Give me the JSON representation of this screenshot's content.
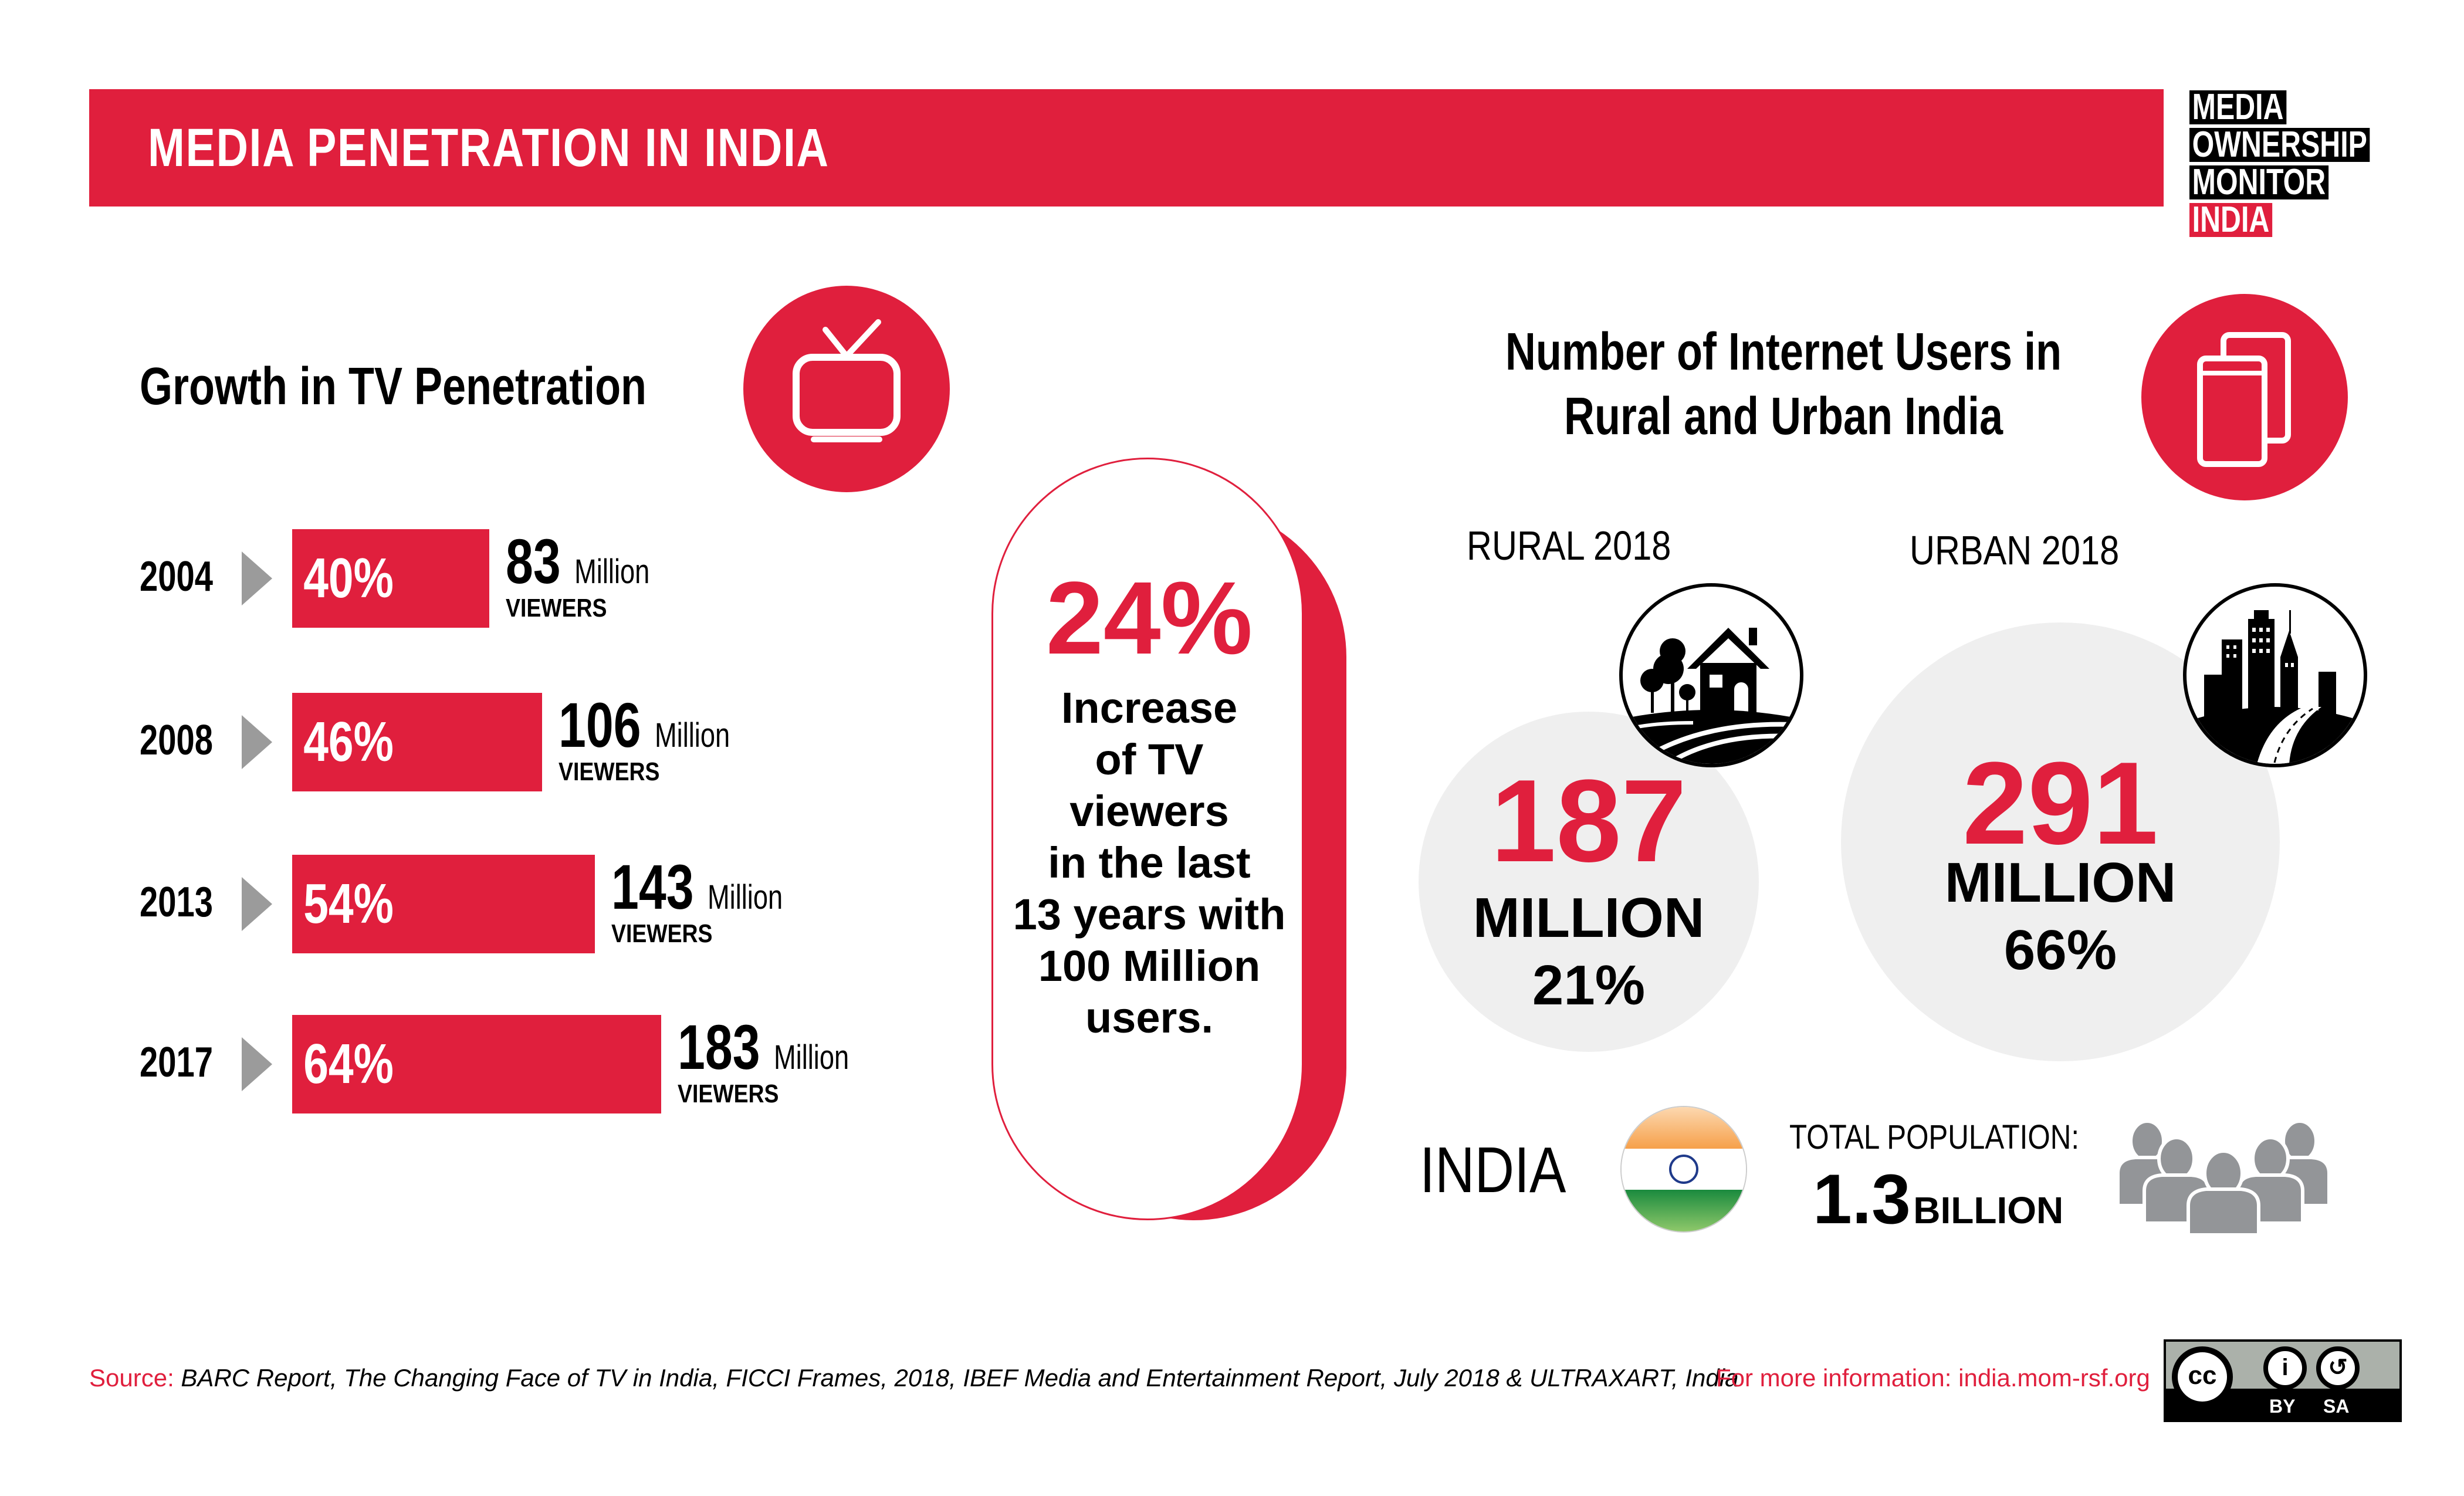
{
  "header": {
    "title": "MEDIA PENETRATION IN INDIA",
    "logo": [
      "MEDIA",
      "OWNERSHIP",
      "MONITOR",
      "INDIA"
    ]
  },
  "colors": {
    "accent": "#e01f3d",
    "gray_circle": "#efefef",
    "arrow": "#9b9b9b",
    "people": "#939598"
  },
  "tv_section": {
    "title": "Growth in TV Penetration",
    "icon": "tv-icon",
    "rows": [
      {
        "year": "2004",
        "percent": "40%",
        "percent_value": 40,
        "viewers": "83",
        "unit": "Million",
        "label": "VIEWERS"
      },
      {
        "year": "2008",
        "percent": "46%",
        "percent_value": 46,
        "viewers": "106",
        "unit": "Million",
        "label": "VIEWERS"
      },
      {
        "year": "2013",
        "percent": "54%",
        "percent_value": 54,
        "viewers": "143",
        "unit": "Million",
        "label": "VIEWERS"
      },
      {
        "year": "2017",
        "percent": "64%",
        "percent_value": 64,
        "viewers": "183",
        "unit": "Million",
        "label": "VIEWERS"
      }
    ]
  },
  "highlight": {
    "percent": "24%",
    "lines": [
      "Increase",
      "of TV",
      "viewers",
      "in the last",
      "13 years with",
      "100 Million",
      "users."
    ]
  },
  "internet_section": {
    "title_line1": "Number of Internet Users in",
    "title_line2": "Rural and Urban India",
    "icon": "mobile-devices-icon",
    "rural": {
      "label": "RURAL 2018",
      "value": "187",
      "unit": "MILLION",
      "percent": "21%",
      "icon": "farmhouse-icon"
    },
    "urban": {
      "label": "URBAN 2018",
      "value": "291",
      "unit": "MILLION",
      "percent": "66%",
      "icon": "city-icon"
    }
  },
  "population": {
    "country": "INDIA",
    "label": "TOTAL POPULATION:",
    "value": "1.3",
    "unit": "BILLION"
  },
  "footer": {
    "source_label": "Source:",
    "source_text": "BARC Report, The Changing Face of TV in India, FICCI Frames, 2018, IBEF Media and Entertainment Report, July 2018 & ULTRAXART, India",
    "more_info": "For more information: india.mom-rsf.org",
    "license": {
      "cc": "cc",
      "by": "BY",
      "sa": "SA"
    }
  },
  "chart_data": {
    "type": "bar",
    "title": "Growth in TV Penetration",
    "categories": [
      "2004",
      "2008",
      "2013",
      "2017"
    ],
    "series": [
      {
        "name": "TV penetration (%)",
        "values": [
          40,
          46,
          54,
          64
        ]
      },
      {
        "name": "Viewers (Million)",
        "values": [
          83,
          106,
          143,
          183
        ]
      }
    ],
    "xlabel": "",
    "ylabel": "",
    "orientation": "horizontal"
  }
}
